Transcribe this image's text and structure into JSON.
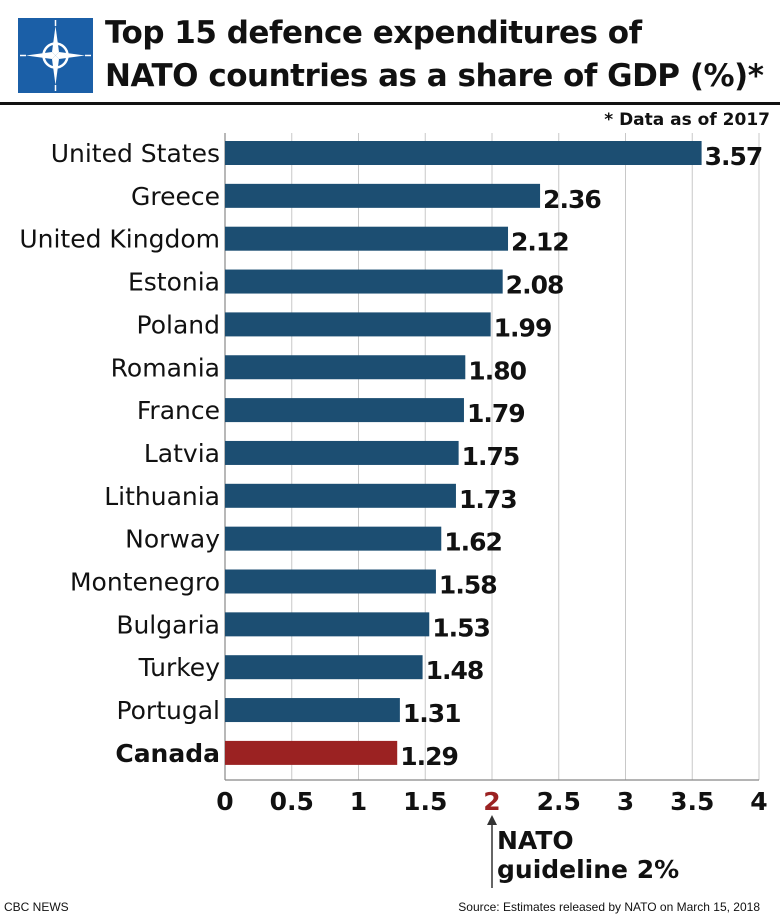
{
  "title_line1": "Top 15  defence expenditures of",
  "title_line2": "NATO countries as a share of GDP (%)*",
  "note": "* Data as of 2017",
  "guideline_line1": "NATO",
  "guideline_line2": "guideline 2%",
  "footer_left": "CBC NEWS",
  "footer_right": "Source: Estimates released by NATO on March 15, 2018",
  "colors": {
    "bar": "#1c4e72",
    "highlight": "#9b2222",
    "logo_bg": "#1b5fa7",
    "guide_tick": "#9b2222"
  },
  "chart_data": {
    "type": "bar",
    "orientation": "horizontal",
    "categories": [
      "United States",
      "Greece",
      "United Kingdom",
      "Estonia",
      "Poland",
      "Romania",
      "France",
      "Latvia",
      "Lithuania",
      "Norway",
      "Montenegro",
      "Bulgaria",
      "Turkey",
      "Portugal",
      "Canada"
    ],
    "values": [
      3.57,
      2.36,
      2.12,
      2.08,
      1.99,
      1.8,
      1.79,
      1.75,
      1.73,
      1.62,
      1.58,
      1.53,
      1.48,
      1.31,
      1.29
    ],
    "value_labels": [
      "3.57",
      "2.36",
      "2.12",
      "2.08",
      "1.99",
      "1.80",
      "1.79",
      "1.75",
      "1.73",
      "1.62",
      "1.58",
      "1.53",
      "1.48",
      "1.31",
      "1.29"
    ],
    "highlight": "Canada",
    "xlim": [
      0,
      4
    ],
    "xticks": [
      "0",
      "0.5",
      "1",
      "1.5",
      "2",
      "2.5",
      "3",
      "3.5",
      "4"
    ],
    "grid": "vertical",
    "reference_value": 2
  }
}
